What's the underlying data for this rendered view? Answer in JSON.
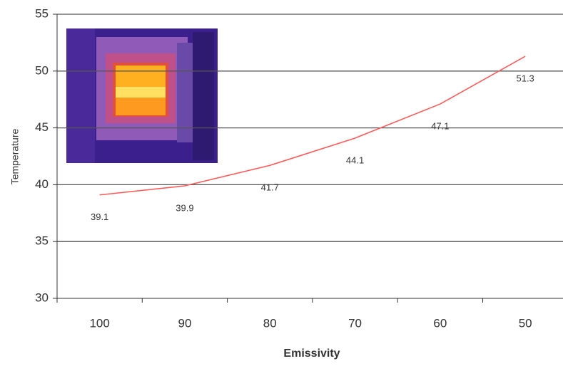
{
  "chart_data": {
    "type": "line",
    "x_label": "Emissivity",
    "y_label": "Temperature",
    "categories": [
      "100",
      "90",
      "80",
      "70",
      "60",
      "50"
    ],
    "values": [
      39.1,
      39.9,
      41.7,
      44.1,
      47.1,
      51.3
    ],
    "color": "#ff5a5a",
    "ylim": [
      30,
      55
    ],
    "yticks": [
      30,
      35,
      40,
      45,
      50,
      55
    ],
    "grid": true
  }
}
